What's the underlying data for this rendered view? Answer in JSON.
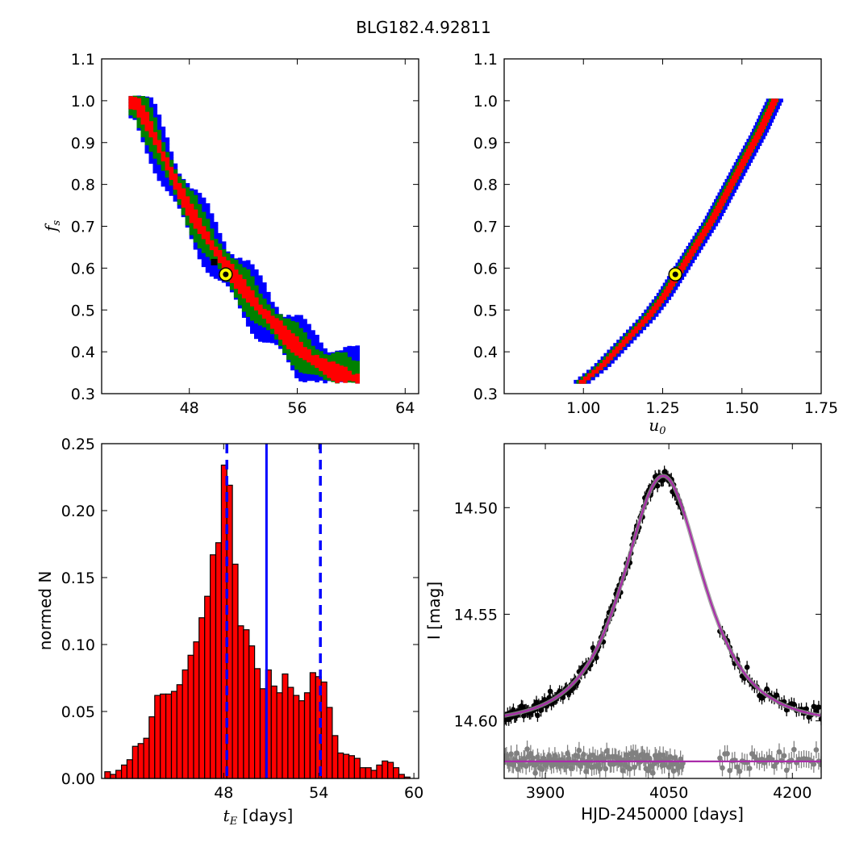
{
  "figure_title": "BLG182.4.92811",
  "chart_data": [
    {
      "id": "fs_vs_tE",
      "type": "heatmap",
      "xlim": [
        41.5,
        65
      ],
      "ylim": [
        0.3,
        1.1
      ],
      "xticks": [
        48,
        56,
        64
      ],
      "yticks": [
        0.3,
        0.4,
        0.5,
        0.6,
        0.7,
        0.8,
        0.9,
        1.0,
        1.1
      ],
      "ytick_labels": [
        "0.3",
        "0.4",
        "0.5",
        "0.6",
        "0.7",
        "0.8",
        "0.9",
        "1.0",
        "1.1"
      ],
      "xlabel": "",
      "ylabel_main": "f",
      "ylabel_sub": "s",
      "confidence_levels": [
        {
          "color": "#0000ff",
          "width_fs": 0.068
        },
        {
          "color": "#008000",
          "width_fs": 0.044
        },
        {
          "color": "#ff0000",
          "width_fs": 0.018
        }
      ],
      "ridge": [
        [
          43.8,
          1.0
        ],
        [
          45.0,
          0.93
        ],
        [
          46.0,
          0.86
        ],
        [
          47.0,
          0.79
        ],
        [
          48.0,
          0.73
        ],
        [
          49.0,
          0.68
        ],
        [
          50.0,
          0.63
        ],
        [
          51.0,
          0.585
        ],
        [
          52.0,
          0.545
        ],
        [
          53.0,
          0.505
        ],
        [
          54.0,
          0.47
        ],
        [
          55.0,
          0.435
        ],
        [
          56.0,
          0.405
        ],
        [
          57.0,
          0.38
        ],
        [
          58.0,
          0.36
        ],
        [
          59.0,
          0.345
        ],
        [
          60.0,
          0.33
        ]
      ],
      "best_fit": {
        "x": 50.7,
        "y": 0.585
      }
    },
    {
      "id": "fs_vs_u0",
      "type": "heatmap",
      "xlim": [
        0.75,
        1.75
      ],
      "ylim": [
        0.3,
        1.1
      ],
      "xticks": [
        1.0,
        1.25,
        1.5,
        1.75
      ],
      "xtick_labels": [
        "1.00",
        "1.25",
        "1.50",
        "1.75"
      ],
      "yticks": [
        0.3,
        0.4,
        0.5,
        0.6,
        0.7,
        0.8,
        0.9,
        1.0,
        1.1
      ],
      "ytick_labels": [
        "0.3",
        "0.4",
        "0.5",
        "0.6",
        "0.7",
        "0.8",
        "0.9",
        "1.0",
        "1.1"
      ],
      "xlabel_main": "u",
      "xlabel_sub": "0",
      "confidence_levels": [
        {
          "color": "#0000ff",
          "width_u0": 0.022
        },
        {
          "color": "#008000",
          "width_u0": 0.014
        },
        {
          "color": "#ff0000",
          "width_u0": 0.006
        }
      ],
      "ridge": [
        [
          1.0,
          0.33
        ],
        [
          1.05,
          0.36
        ],
        [
          1.1,
          0.4
        ],
        [
          1.15,
          0.44
        ],
        [
          1.2,
          0.48
        ],
        [
          1.25,
          0.53
        ],
        [
          1.3,
          0.59
        ],
        [
          1.35,
          0.65
        ],
        [
          1.4,
          0.71
        ],
        [
          1.45,
          0.78
        ],
        [
          1.5,
          0.85
        ],
        [
          1.55,
          0.92
        ],
        [
          1.6,
          1.0
        ]
      ],
      "best_fit": {
        "x": 1.29,
        "y": 0.585
      }
    },
    {
      "id": "tE_histogram",
      "type": "bar",
      "xlim": [
        40.3,
        60.3
      ],
      "ylim": [
        0.0,
        0.25
      ],
      "bin_start": 40.5,
      "bin_width": 0.35,
      "xticks": [
        48,
        54,
        60
      ],
      "yticks": [
        0.0,
        0.05,
        0.1,
        0.15,
        0.2,
        0.25
      ],
      "ytick_labels": [
        "0.00",
        "0.05",
        "0.10",
        "0.15",
        "0.20",
        "0.25"
      ],
      "values": [
        0.005,
        0.003,
        0.006,
        0.01,
        0.014,
        0.024,
        0.026,
        0.03,
        0.046,
        0.062,
        0.063,
        0.063,
        0.065,
        0.07,
        0.081,
        0.092,
        0.102,
        0.12,
        0.136,
        0.167,
        0.176,
        0.234,
        0.219,
        0.16,
        0.114,
        0.111,
        0.099,
        0.082,
        0.067,
        0.081,
        0.069,
        0.064,
        0.078,
        0.068,
        0.062,
        0.058,
        0.064,
        0.079,
        0.076,
        0.072,
        0.053,
        0.032,
        0.019,
        0.018,
        0.017,
        0.015,
        0.008,
        0.008,
        0.006,
        0.01,
        0.013,
        0.012,
        0.008,
        0.003,
        0.001
      ],
      "bar_color": "#ff0000",
      "xlabel_main": "t",
      "xlabel_sub": "E",
      "xlabel_rest": " [days]",
      "ylabel": "normed N",
      "median": 50.7,
      "interval": [
        48.2,
        54.1
      ],
      "line_color": "#0000ff"
    },
    {
      "id": "light_curve",
      "type": "scatter",
      "xlim": [
        3850,
        4235
      ],
      "ylim_inverted": [
        14.627,
        14.47
      ],
      "xticks": [
        3900,
        4050,
        4200
      ],
      "yticks": [
        14.5,
        14.55,
        14.6
      ],
      "ytick_labels": [
        "14.50",
        "14.55",
        "14.60"
      ],
      "xlabel": "HJD-2450000 [days]",
      "ylabel": "I [mag]",
      "model": {
        "t0": 4043,
        "tE": 50.7,
        "u0": 1.29,
        "fs": 0.585,
        "baseline_mag": 14.6015
      },
      "residual_offset_mag": 14.619,
      "data_color": "#000000",
      "residual_color": "#808080",
      "model_color": "#aa2caa",
      "model_band_color": "#909090"
    }
  ]
}
